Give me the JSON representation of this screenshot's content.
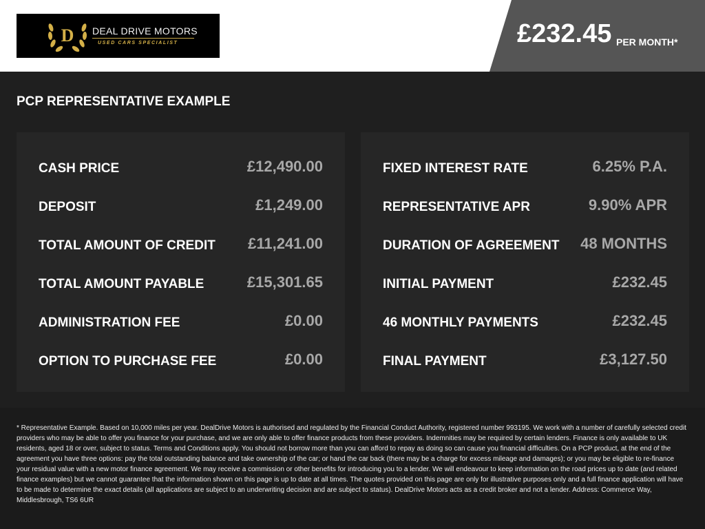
{
  "brand": {
    "name": "DEAL DRIVE MOTORS",
    "tagline": "USED CARS SPECIALIST",
    "logo_letter": "D",
    "gold": "#d4b048"
  },
  "price": {
    "amount": "£232.45",
    "suffix": "PER MONTH*"
  },
  "section_title": "PCP REPRESENTATIVE EXAMPLE",
  "left_rows": [
    {
      "label": "CASH PRICE",
      "value": "£12,490.00"
    },
    {
      "label": "DEPOSIT",
      "value": "£1,249.00"
    },
    {
      "label": "TOTAL AMOUNT OF CREDIT",
      "value": "£11,241.00"
    },
    {
      "label": "TOTAL AMOUNT PAYABLE",
      "value": "£15,301.65"
    },
    {
      "label": "ADMINISTRATION FEE",
      "value": "£0.00"
    },
    {
      "label": "OPTION TO PURCHASE FEE",
      "value": "£0.00"
    }
  ],
  "right_rows": [
    {
      "label": "FIXED INTEREST RATE",
      "value": "6.25% P.A."
    },
    {
      "label": "REPRESENTATIVE APR",
      "value": "9.90% APR"
    },
    {
      "label": "DURATION OF AGREEMENT",
      "value": "48 MONTHS"
    },
    {
      "label": "INITIAL PAYMENT",
      "value": "£232.45"
    },
    {
      "label": "46 MONTHLY PAYMENTS",
      "value": "£232.45"
    },
    {
      "label": "FINAL PAYMENT",
      "value": "£3,127.50"
    }
  ],
  "disclaimer_lines": [
    "* Representative Example. Based on 10,000 miles per year. DealDrive Motors is authorised and regulated by the Financial Conduct Authority, registered number 993195. We work with a number of carefully selected",
    "credit providers who may be able to offer you finance for your purchase, and we are only able to offer finance products from these providers. Indemnities may be required by certain lenders. Finance is only",
    "available to UK residents, aged 18 or over, subject to status. Terms and Conditions apply. You should not borrow more than you can afford to repay as doing so can cause you financial difficulties. On a PCP",
    "product, at the end of the agreement you have three options: pay the total outstanding balance and take ownership of the car; or hand the car back (there may be a charge for excess mileage and damages); or you",
    "may be eligible to re-finance your residual value with a new motor finance agreement. We may receive a commission or other benefits for introducing you to a lender. We will endeavour to keep information on the",
    "road prices up to date (and related finance examples) but we cannot guarantee that the information shown on this page is up to date at all times. The quotes provided on this page are only for illustrative",
    "purposes only and a full finance application will have to be made to determine the exact details (all applications are subject to an underwriting decision and are subject to status). DealDrive Motors acts as a",
    "credit broker and not a lender. Address: Commerce Way, Middlesbrough, TS6 6UR"
  ]
}
